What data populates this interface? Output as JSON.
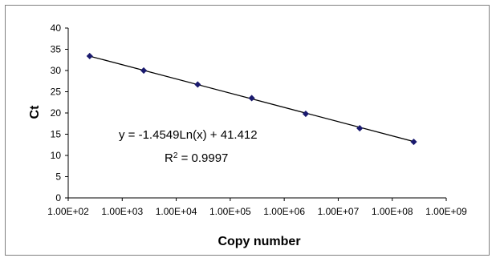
{
  "chart_data": {
    "type": "scatter",
    "title": "",
    "xlabel": "Copy number",
    "ylabel": "Ct",
    "x_scale": "log",
    "xlim": [
      100,
      1000000000
    ],
    "ylim": [
      0,
      40
    ],
    "x_ticks": [
      "1.00E+02",
      "1.00E+03",
      "1.00E+04",
      "1.00E+05",
      "1.00E+06",
      "1.00E+07",
      "1.00E+08",
      "1.00E+09"
    ],
    "y_ticks": [
      "0",
      "5",
      "10",
      "15",
      "20",
      "25",
      "30",
      "35",
      "40"
    ],
    "grid": false,
    "legend": "none",
    "series": [
      {
        "x": [
          250,
          2500,
          25000,
          250000,
          2500000,
          25000000,
          250000000
        ],
        "y": [
          33.4,
          30.0,
          26.7,
          23.5,
          19.8,
          16.4,
          13.2
        ],
        "color": "#1a1a6e"
      }
    ],
    "trendline": {
      "type": "logarithmic",
      "slope": -1.4549,
      "intercept": 41.412,
      "color": "#000000"
    },
    "annotations": {
      "equation": "y = -1.4549Ln(x) + 41.412",
      "r2_prefix": "R",
      "r2_exponent": "2",
      "r2_value": " = 0.9997"
    }
  }
}
